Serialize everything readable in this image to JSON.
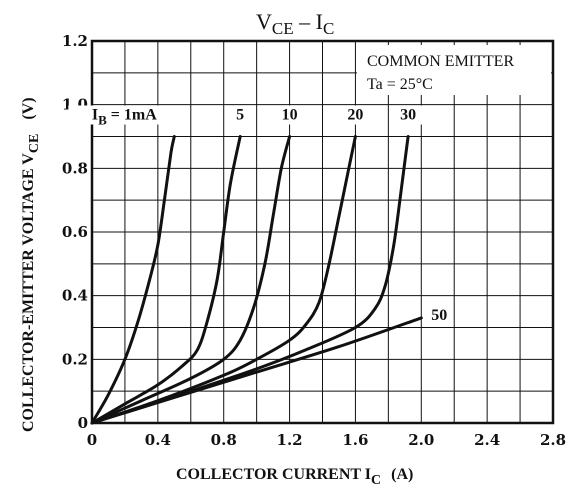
{
  "chart_data": {
    "type": "line",
    "title": {
      "main": "V",
      "main_sub": "CE",
      "sep": " – ",
      "second": "I",
      "second_sub": "C"
    },
    "xlabel": {
      "text": "COLLECTOR CURRENT  I",
      "sub": "C",
      "unit": "(A)"
    },
    "ylabel": {
      "text": "COLLECTOR-EMITTER VOLTAGE   V",
      "sub": "CE",
      "unit": "(V)"
    },
    "xlim": [
      0,
      2.8
    ],
    "ylim": [
      0,
      1.2
    ],
    "x_ticks": [
      "0",
      "0.4",
      "0.8",
      "1.2",
      "1.6",
      "2.0",
      "2.4",
      "2.8"
    ],
    "y_ticks": [
      "0",
      "0.2",
      "0.4",
      "0.6",
      "0.8",
      "1.0",
      "1.2"
    ],
    "grid": true,
    "annotations": [
      "COMMON EMITTER",
      "Ta = 25°C"
    ],
    "series": [
      {
        "name": "1mA",
        "label": "1mA",
        "points": [
          [
            0,
            0
          ],
          [
            0.1,
            0.09
          ],
          [
            0.2,
            0.2
          ],
          [
            0.28,
            0.32
          ],
          [
            0.35,
            0.45
          ],
          [
            0.4,
            0.56
          ],
          [
            0.44,
            0.7
          ],
          [
            0.48,
            0.85
          ],
          [
            0.5,
            0.9
          ]
        ]
      },
      {
        "name": "5",
        "label": "5",
        "points": [
          [
            0,
            0
          ],
          [
            0.2,
            0.06
          ],
          [
            0.4,
            0.12
          ],
          [
            0.55,
            0.18
          ],
          [
            0.64,
            0.23
          ],
          [
            0.7,
            0.32
          ],
          [
            0.76,
            0.45
          ],
          [
            0.8,
            0.6
          ],
          [
            0.84,
            0.75
          ],
          [
            0.9,
            0.9
          ]
        ]
      },
      {
        "name": "10",
        "label": "10",
        "points": [
          [
            0,
            0
          ],
          [
            0.3,
            0.07
          ],
          [
            0.6,
            0.14
          ],
          [
            0.8,
            0.2
          ],
          [
            0.9,
            0.26
          ],
          [
            0.98,
            0.36
          ],
          [
            1.05,
            0.5
          ],
          [
            1.1,
            0.65
          ],
          [
            1.15,
            0.8
          ],
          [
            1.2,
            0.9
          ]
        ]
      },
      {
        "name": "20",
        "label": "20",
        "points": [
          [
            0,
            0
          ],
          [
            0.4,
            0.07
          ],
          [
            0.8,
            0.15
          ],
          [
            1.0,
            0.2
          ],
          [
            1.2,
            0.26
          ],
          [
            1.3,
            0.31
          ],
          [
            1.38,
            0.38
          ],
          [
            1.44,
            0.5
          ],
          [
            1.5,
            0.65
          ],
          [
            1.56,
            0.8
          ],
          [
            1.6,
            0.9
          ]
        ]
      },
      {
        "name": "30",
        "label": "30",
        "points": [
          [
            0,
            0
          ],
          [
            0.6,
            0.1
          ],
          [
            1.0,
            0.17
          ],
          [
            1.3,
            0.23
          ],
          [
            1.6,
            0.3
          ],
          [
            1.72,
            0.36
          ],
          [
            1.78,
            0.43
          ],
          [
            1.83,
            0.55
          ],
          [
            1.87,
            0.7
          ],
          [
            1.9,
            0.82
          ],
          [
            1.92,
            0.9
          ]
        ]
      },
      {
        "name": "50",
        "label": "50",
        "points": [
          [
            0,
            0
          ],
          [
            0.5,
            0.08
          ],
          [
            1.0,
            0.16
          ],
          [
            1.5,
            0.24
          ],
          [
            2.0,
            0.33
          ]
        ]
      }
    ],
    "legend_prefix": {
      "text": "I",
      "sub": "B",
      "eq": " = "
    }
  }
}
